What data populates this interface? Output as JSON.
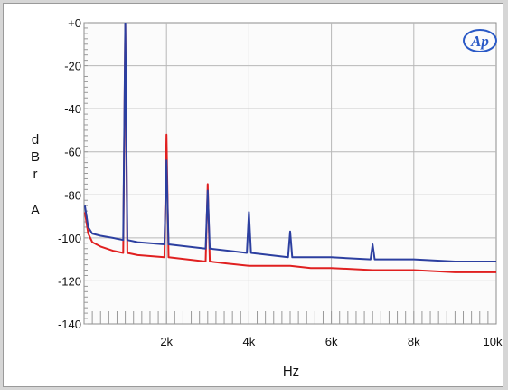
{
  "chart_data": {
    "type": "line",
    "title": "",
    "xlabel": "Hz",
    "ylabel": "dBrA",
    "ylabel_chars": [
      "d",
      "B",
      "r",
      "A"
    ],
    "xlim": [
      0,
      10000
    ],
    "ylim": [
      -140,
      0
    ],
    "x_ticks": [
      {
        "value": 2000,
        "label": "2k"
      },
      {
        "value": 4000,
        "label": "4k"
      },
      {
        "value": 6000,
        "label": "6k"
      },
      {
        "value": 8000,
        "label": "8k"
      },
      {
        "value": 10000,
        "label": "10k"
      }
    ],
    "y_ticks": [
      {
        "value": 0,
        "label": "+0"
      },
      {
        "value": -20,
        "label": "-20"
      },
      {
        "value": -40,
        "label": "-40"
      },
      {
        "value": -60,
        "label": "-60"
      },
      {
        "value": -80,
        "label": "-80"
      },
      {
        "value": -100,
        "label": "-100"
      },
      {
        "value": -120,
        "label": "-120"
      },
      {
        "value": -140,
        "label": "-140"
      }
    ],
    "grid": true,
    "logo": "Ap",
    "series": [
      {
        "color": "#e02020",
        "x": [
          20,
          100,
          200,
          400,
          700,
          950,
          1000,
          1050,
          1300,
          1950,
          2000,
          2050,
          2500,
          2950,
          3000,
          3050,
          3500,
          4000,
          4500,
          5000,
          5500,
          6000,
          7000,
          8000,
          9000,
          10000
        ],
        "y": [
          -88,
          -98,
          -102,
          -104,
          -106,
          -107,
          -1,
          -107,
          -108,
          -109,
          -52,
          -109,
          -110,
          -111,
          -75,
          -111,
          -112,
          -113,
          -113,
          -113,
          -114,
          -114,
          -115,
          -115,
          -116,
          -116
        ]
      },
      {
        "color": "#2c3fa0",
        "x": [
          20,
          100,
          200,
          400,
          700,
          950,
          1000,
          1050,
          1300,
          1950,
          2000,
          2050,
          2500,
          2950,
          3000,
          3050,
          3500,
          3950,
          4000,
          4050,
          4500,
          4950,
          5000,
          5050,
          6000,
          6950,
          7000,
          7050,
          8000,
          9000,
          10000
        ],
        "y": [
          -85,
          -95,
          -98,
          -99,
          -100,
          -101,
          0,
          -101,
          -102,
          -103,
          -64,
          -103,
          -104,
          -105,
          -78,
          -105,
          -106,
          -107,
          -88,
          -107,
          -108,
          -109,
          -97,
          -109,
          -109,
          -110,
          -103,
          -110,
          -110,
          -111,
          -111
        ]
      }
    ]
  }
}
